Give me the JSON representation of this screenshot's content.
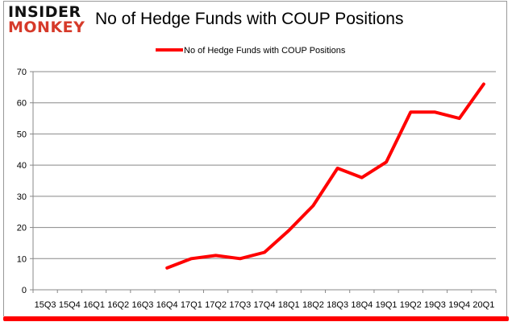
{
  "logo": {
    "line1": "INSIDER",
    "line2": "MONKEY"
  },
  "chart_data": {
    "type": "line",
    "title": "No of Hedge Funds with COUP Positions",
    "xlabel": "",
    "ylabel": "",
    "categories": [
      "15Q3",
      "15Q4",
      "16Q1",
      "16Q2",
      "16Q3",
      "16Q4",
      "17Q1",
      "17Q2",
      "17Q3",
      "17Q4",
      "18Q1",
      "18Q2",
      "18Q3",
      "18Q4",
      "19Q1",
      "19Q2",
      "19Q3",
      "19Q4",
      "20Q1"
    ],
    "series": [
      {
        "name": "No of Hedge Funds with COUP Positions",
        "color": "#ff0000",
        "values": [
          null,
          null,
          null,
          null,
          null,
          7,
          10,
          11,
          10,
          12,
          19,
          27,
          39,
          36,
          41,
          57,
          57,
          55,
          66
        ]
      }
    ],
    "ylim": [
      0,
      70
    ],
    "yticks": [
      0,
      10,
      20,
      30,
      40,
      50,
      60,
      70
    ],
    "grid": true,
    "legend": "top"
  }
}
